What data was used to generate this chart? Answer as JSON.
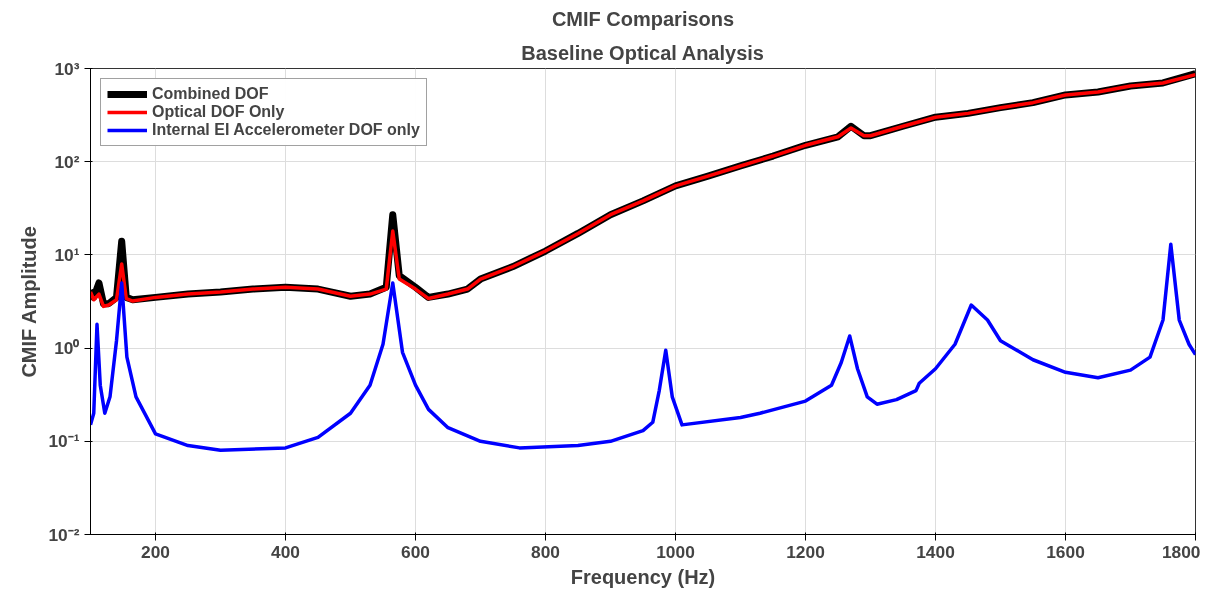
{
  "chart_data": {
    "type": "line",
    "title": "CMIF Comparisons",
    "subtitle": "Baseline Optical Analysis",
    "xlabel": "Frequency (Hz)",
    "ylabel": "CMIF Amplitude",
    "log": "y",
    "grid": true,
    "legend": "top left",
    "xlim": [
      100,
      1800
    ],
    "xticks": [
      200,
      400,
      600,
      800,
      1000,
      1200,
      1400,
      1600,
      1800
    ],
    "ylim": [
      0.01,
      1000
    ],
    "yticks": [
      {
        "value": 0.01,
        "label": "10⁻²"
      },
      {
        "value": 0.1,
        "label": "10⁻¹"
      },
      {
        "value": 1,
        "label": "10⁰"
      },
      {
        "value": 10,
        "label": "10¹"
      },
      {
        "value": 100,
        "label": "10²"
      },
      {
        "value": 1000,
        "label": "10³"
      }
    ],
    "series": [
      {
        "name": "Combined DOF",
        "color": "#000000",
        "x": [
          100,
          105,
          113,
          120,
          128,
          140,
          148,
          155,
          165,
          200,
          250,
          300,
          350,
          400,
          450,
          500,
          530,
          555,
          565,
          575,
          600,
          620,
          650,
          680,
          700,
          750,
          800,
          850,
          900,
          950,
          1000,
          1050,
          1100,
          1150,
          1200,
          1250,
          1270,
          1290,
          1300,
          1350,
          1400,
          1450,
          1500,
          1550,
          1600,
          1650,
          1700,
          1750,
          1800
        ],
        "values": [
          4.2,
          3.5,
          5,
          3,
          3,
          3.5,
          14,
          3.5,
          3.3,
          3.5,
          3.8,
          4,
          4.3,
          4.5,
          4.3,
          3.6,
          3.8,
          4.5,
          27,
          6,
          4.5,
          3.5,
          3.8,
          4.3,
          5.5,
          7.5,
          11,
          17,
          27,
          38,
          55,
          70,
          90,
          115,
          150,
          185,
          240,
          190,
          190,
          240,
          300,
          330,
          380,
          430,
          520,
          560,
          650,
          700,
          880
        ]
      },
      {
        "name": "Optical DOF Only",
        "color": "#ff0000",
        "x": [
          100,
          105,
          113,
          120,
          128,
          140,
          148,
          155,
          165,
          200,
          250,
          300,
          350,
          400,
          450,
          500,
          530,
          555,
          565,
          575,
          600,
          620,
          650,
          680,
          700,
          750,
          800,
          850,
          900,
          950,
          1000,
          1050,
          1100,
          1150,
          1200,
          1250,
          1270,
          1290,
          1300,
          1350,
          1400,
          1450,
          1500,
          1550,
          1600,
          1650,
          1700,
          1750,
          1800
        ],
        "values": [
          4,
          3.3,
          3.8,
          2.8,
          2.9,
          3.3,
          8,
          3.4,
          3.2,
          3.5,
          3.8,
          4,
          4.3,
          4.5,
          4.3,
          3.6,
          3.8,
          4.3,
          18,
          5.5,
          4.3,
          3.4,
          3.8,
          4.3,
          5.5,
          7.5,
          11,
          17,
          27,
          38,
          55,
          70,
          90,
          115,
          150,
          185,
          230,
          190,
          190,
          240,
          300,
          330,
          380,
          430,
          520,
          560,
          650,
          700,
          860
        ]
      },
      {
        "name": "Internal EI Accelerometer DOF only",
        "color": "#0000ff",
        "x": [
          100,
          105,
          110,
          115,
          122,
          130,
          140,
          148,
          156,
          170,
          200,
          250,
          300,
          400,
          450,
          500,
          530,
          550,
          565,
          580,
          600,
          620,
          650,
          700,
          760,
          850,
          900,
          950,
          965,
          975,
          985,
          995,
          1010,
          1100,
          1130,
          1200,
          1240,
          1255,
          1268,
          1280,
          1295,
          1310,
          1340,
          1370,
          1375,
          1400,
          1430,
          1455,
          1480,
          1500,
          1550,
          1600,
          1650,
          1700,
          1730,
          1750,
          1762,
          1775,
          1790,
          1800
        ],
        "values": [
          0.15,
          0.2,
          1.8,
          0.4,
          0.2,
          0.3,
          1.2,
          5,
          0.8,
          0.3,
          0.12,
          0.09,
          0.08,
          0.085,
          0.11,
          0.2,
          0.4,
          1.1,
          5,
          0.9,
          0.4,
          0.22,
          0.14,
          0.1,
          0.085,
          0.09,
          0.1,
          0.13,
          0.16,
          0.35,
          0.95,
          0.3,
          0.15,
          0.18,
          0.2,
          0.27,
          0.4,
          0.7,
          1.35,
          0.6,
          0.3,
          0.25,
          0.28,
          0.35,
          0.42,
          0.6,
          1.1,
          2.9,
          2.0,
          1.2,
          0.75,
          0.55,
          0.48,
          0.58,
          0.8,
          2.0,
          13,
          2.0,
          1.1,
          0.85
        ]
      }
    ]
  }
}
